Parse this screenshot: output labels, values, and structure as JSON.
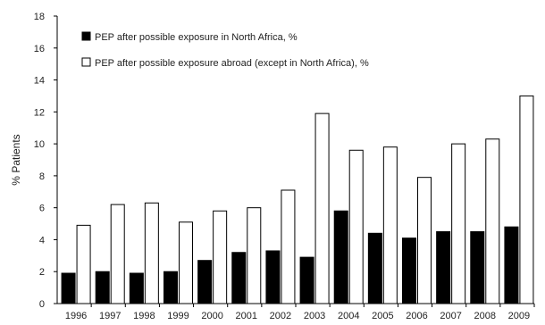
{
  "chart_data": {
    "type": "bar",
    "title": "",
    "xlabel": "",
    "ylabel": "% Patients",
    "ylim": [
      0,
      18
    ],
    "yticks": [
      0,
      2,
      4,
      6,
      8,
      10,
      12,
      14,
      16,
      18
    ],
    "grid": false,
    "legend_position": "top-left",
    "categories": [
      "1996",
      "1997",
      "1998",
      "1999",
      "2000",
      "2001",
      "2002",
      "2003",
      "2004",
      "2005",
      "2006",
      "2007",
      "2008",
      "2009"
    ],
    "series": [
      {
        "name": "PEP after possible exposure in North Africa, %",
        "fill": "#000000",
        "values": [
          1.9,
          2.0,
          1.9,
          2.0,
          2.7,
          3.2,
          3.3,
          2.9,
          5.8,
          4.4,
          4.1,
          4.5,
          4.5,
          4.8
        ]
      },
      {
        "name": "PEP after possible exposure abroad (except in North Africa), %",
        "fill": "#ffffff",
        "values": [
          4.9,
          6.2,
          6.3,
          5.1,
          5.8,
          6.0,
          7.1,
          11.9,
          9.6,
          9.8,
          7.9,
          10.0,
          10.3,
          13.0
        ]
      }
    ]
  }
}
